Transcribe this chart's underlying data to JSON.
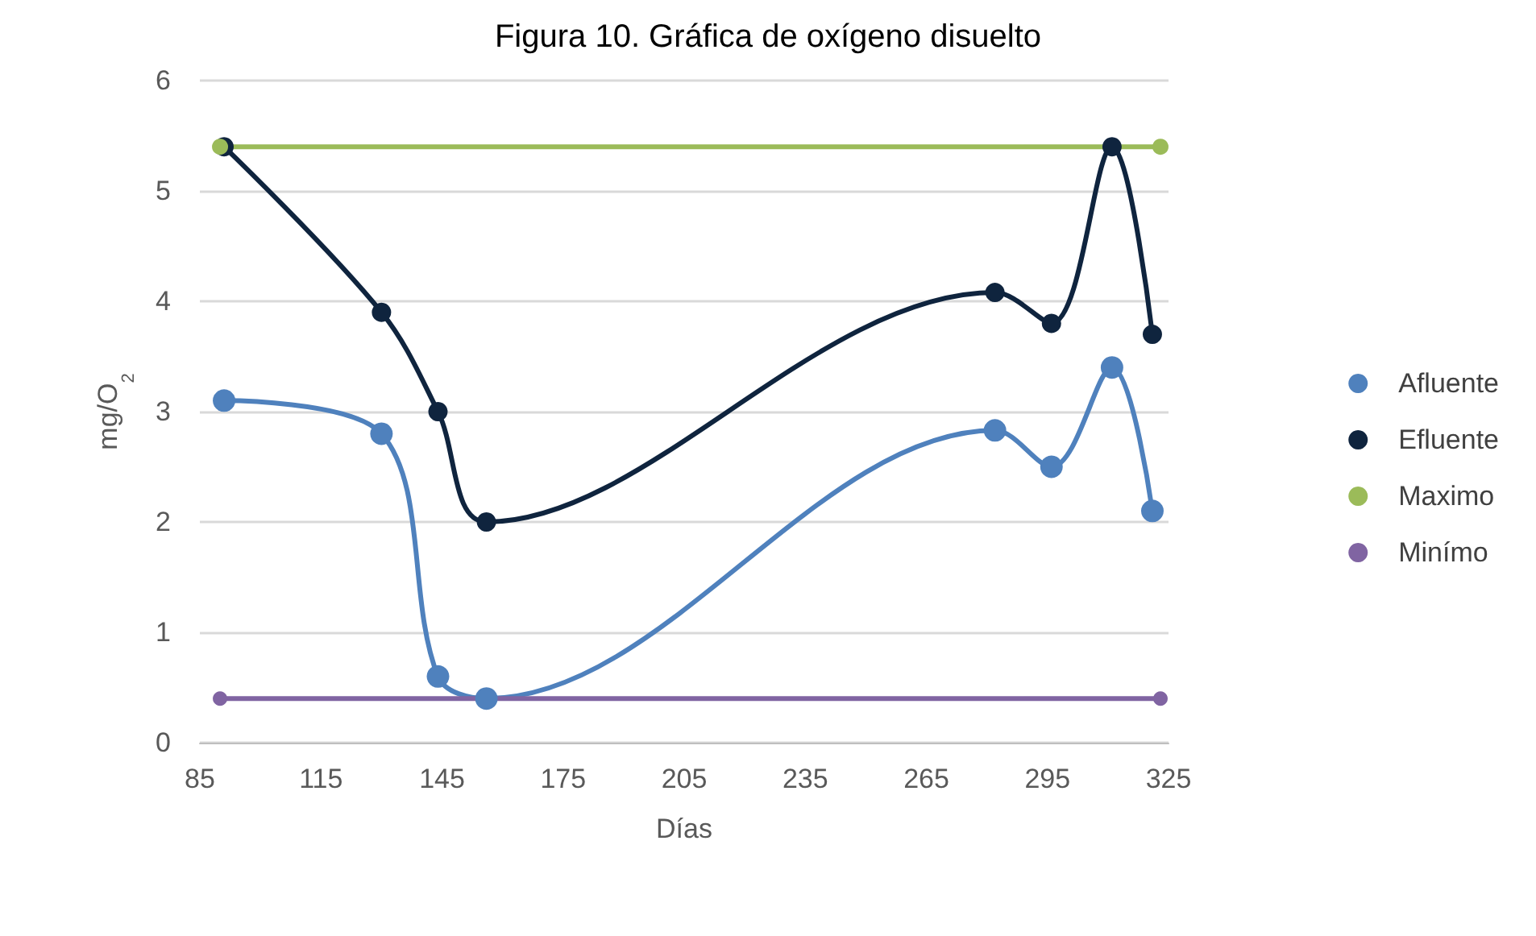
{
  "chart_data": {
    "type": "line",
    "title": "Figura 10. Gráfica de oxígeno disuelto",
    "xlabel": "Días",
    "ylabel": "mg/O$_{2}$",
    "xlim": [
      85,
      325
    ],
    "xticks": [
      85,
      115,
      145,
      175,
      205,
      235,
      265,
      295,
      325
    ],
    "ylim": [
      0,
      6
    ],
    "yticks": [
      0,
      1,
      2,
      3,
      4,
      5,
      6
    ],
    "grid": "y",
    "legend": "right",
    "marker": "circle",
    "line_style": "solid",
    "series": [
      {
        "name": "Afluente",
        "color": "#4f81bd",
        "x": [
          91,
          130,
          144,
          156,
          282,
          296,
          311,
          321
        ],
        "values": [
          3.1,
          2.8,
          0.6,
          0.4,
          2.83,
          2.5,
          3.4,
          2.1
        ]
      },
      {
        "name": "Efluente",
        "color": "#0f243e",
        "x": [
          91,
          130,
          144,
          156,
          282,
          296,
          311,
          321
        ],
        "values": [
          5.4,
          3.9,
          3.0,
          2.0,
          4.08,
          3.8,
          5.4,
          3.7
        ]
      },
      {
        "name": "Maximo",
        "color": "#9bbb59",
        "x": [
          90,
          323
        ],
        "values": [
          5.4,
          5.4
        ]
      },
      {
        "name": "Minímo",
        "color": "#8064a2",
        "x": [
          90,
          323
        ],
        "values": [
          0.4,
          0.4
        ]
      }
    ]
  }
}
